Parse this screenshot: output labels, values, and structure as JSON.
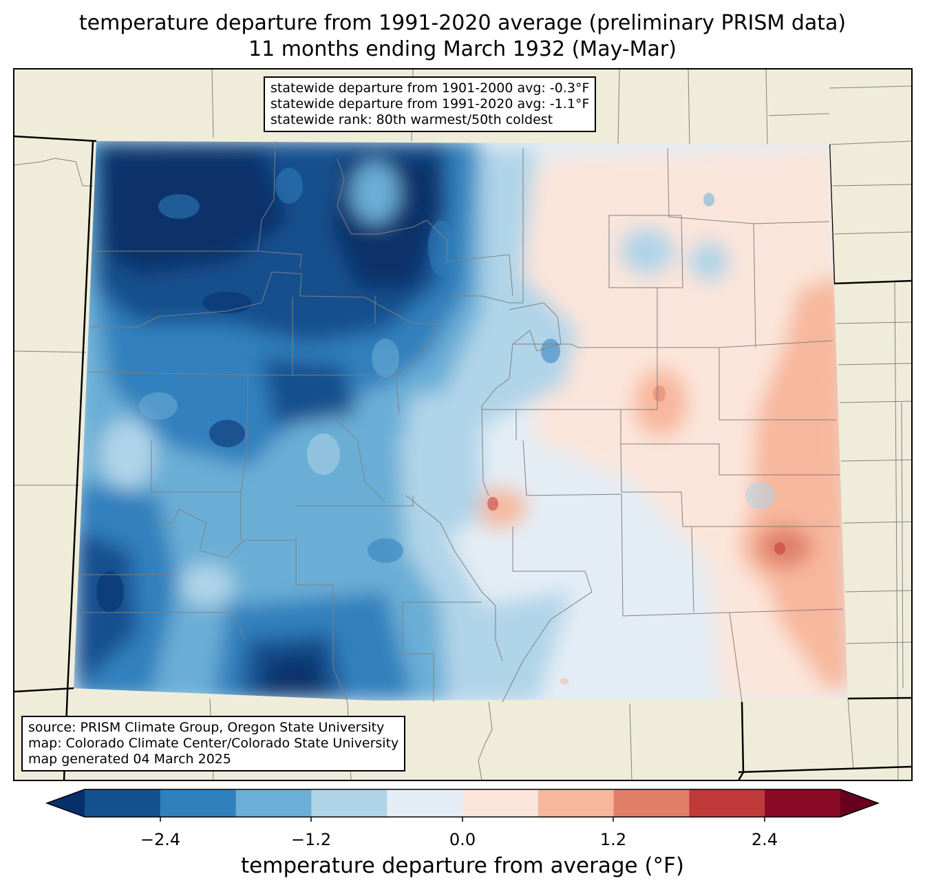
{
  "title": {
    "line1": "temperature departure from 1991-2020 average (preliminary PRISM data)",
    "line2": "11 months ending March 1932 (May-Mar)"
  },
  "stats_box": {
    "line1": "statewide departure from 1901-2000 avg: -0.3°F",
    "line2": "statewide departure from 1991-2020 avg: -1.1°F",
    "line3": "statewide rank: 80th warmest/50th coldest"
  },
  "source_box": {
    "line1": "source: PRISM Climate Group, Oregon State University",
    "line2": "map: Colorado Climate Center/Colorado State University",
    "line3": "map generated 04 March 2025"
  },
  "colorbar": {
    "label": "temperature departure from average (°F)",
    "ticks": [
      "−2.4",
      "−1.2",
      "0.0",
      "1.2",
      "2.4"
    ],
    "colors": [
      "#08306b",
      "#15508e",
      "#3080bd",
      "#6baed6",
      "#b0d4e8",
      "#e4edf5",
      "#fbe5da",
      "#f7b79c",
      "#e07f68",
      "#c13a3a",
      "#880a25",
      "#67001f"
    ],
    "land_color": "#efedda"
  }
}
